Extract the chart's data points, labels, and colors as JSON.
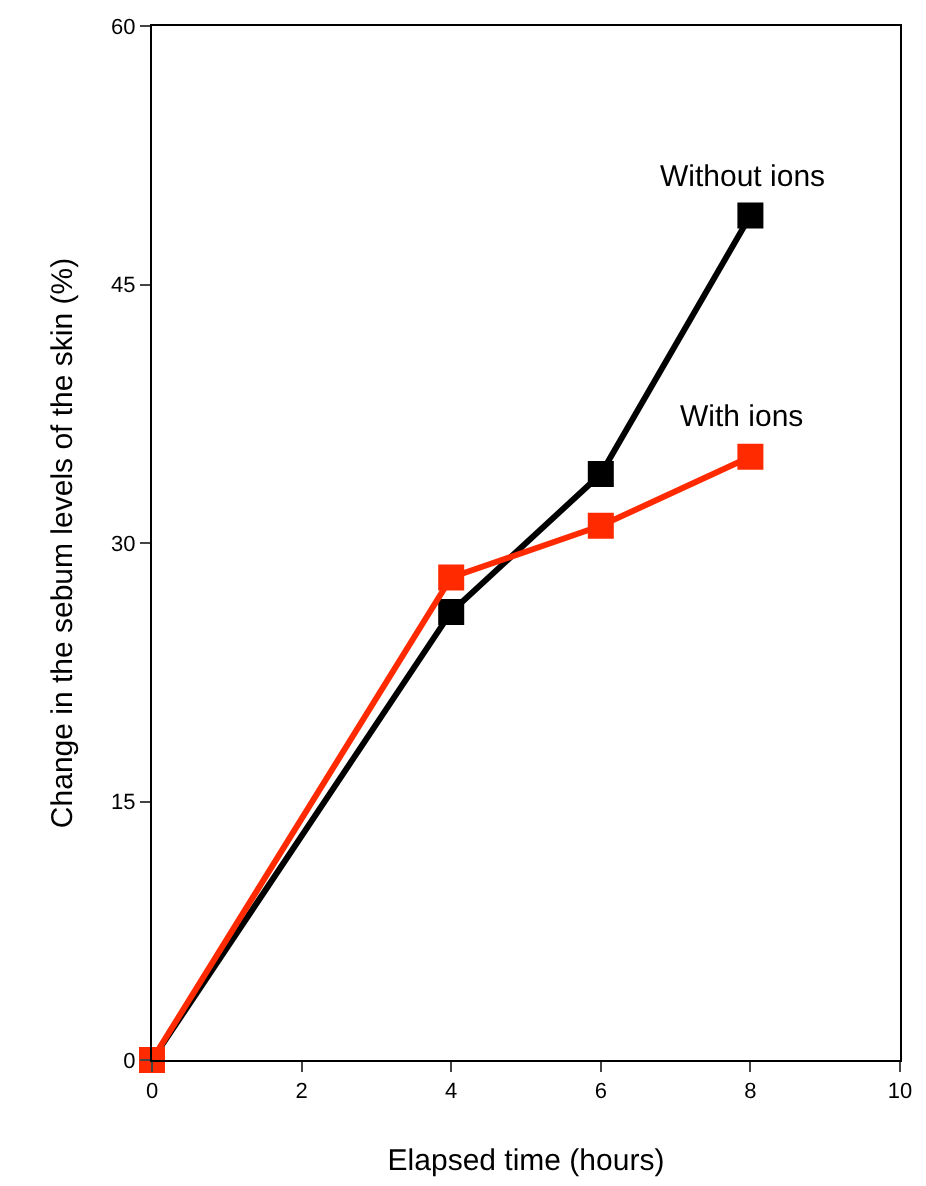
{
  "chart_data": {
    "type": "line",
    "xlabel": "Elapsed time (hours)",
    "ylabel": "Change in the sebum levels of the skin (%)",
    "x": [
      0,
      4,
      6,
      8
    ],
    "series": [
      {
        "name": "Without ions",
        "color": "#000000",
        "values": [
          0,
          26,
          34,
          49
        ]
      },
      {
        "name": "With ions",
        "color": "#ff2a00",
        "values": [
          0,
          28,
          31,
          35
        ]
      }
    ],
    "xlim": [
      0,
      10
    ],
    "xticks": [
      0,
      2,
      4,
      6,
      8,
      10
    ],
    "ylim": [
      0,
      60
    ],
    "yticks": [
      0,
      15,
      30,
      45,
      60
    ],
    "grid": false,
    "legend": false,
    "marker": "square",
    "line_style": "solid"
  }
}
